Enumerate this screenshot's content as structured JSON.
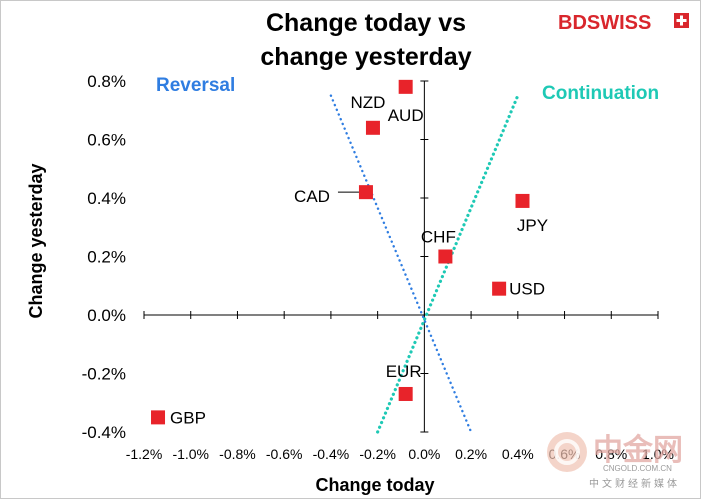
{
  "brand": {
    "part1": "BD",
    "part2": "SWISS",
    "color": "#d9262c"
  },
  "watermark": {
    "main": "中金网",
    "url": "CNGOLD.COM.CN",
    "cn": "中文财经新媒体",
    "color": "#e2a8a2"
  },
  "chart_data": {
    "type": "scatter",
    "title": [
      "Change today vs",
      "change yesterday"
    ],
    "xlabel": "Change today",
    "ylabel": "Change yesterday",
    "xlim": [
      -1.2,
      1.0
    ],
    "ylim": [
      -0.4,
      0.8
    ],
    "x_ticks": [
      -1.2,
      -1.0,
      -0.8,
      -0.6,
      -0.4,
      -0.2,
      0.0,
      0.2,
      0.4,
      0.6,
      0.8,
      1.0
    ],
    "x_tick_labels": [
      "-1.2%",
      "-1.0%",
      "-0.8%",
      "-0.6%",
      "-0.4%",
      "-0.2%",
      "0.0%",
      "0.2%",
      "0.4%",
      "0.6%",
      "0.8%",
      "1.0%"
    ],
    "y_ticks": [
      0.8,
      0.6,
      0.4,
      0.2,
      0.0,
      -0.2,
      -0.4
    ],
    "y_tick_labels": [
      "0.8%",
      "0.6%",
      "0.4%",
      "0.2%",
      "0.0%",
      "-0.2%",
      "-0.4%"
    ],
    "marker_color": "#e8232a",
    "points": [
      {
        "label": "AUD",
        "x": -0.08,
        "y": 0.78
      },
      {
        "label": "NZD",
        "x": -0.22,
        "y": 0.64
      },
      {
        "label": "CAD",
        "x": -0.25,
        "y": 0.42
      },
      {
        "label": "CHF",
        "x": 0.09,
        "y": 0.2
      },
      {
        "label": "JPY",
        "x": 0.42,
        "y": 0.39
      },
      {
        "label": "USD",
        "x": 0.32,
        "y": 0.09
      },
      {
        "label": "EUR",
        "x": -0.08,
        "y": -0.27
      },
      {
        "label": "GBP",
        "x": -1.14,
        "y": -0.35
      }
    ],
    "guides": [
      {
        "name": "Reversal",
        "color": "#2f7de1",
        "from": [
          -0.4,
          0.75
        ],
        "to": [
          0.2,
          -0.4
        ]
      },
      {
        "name": "Continuation",
        "color": "#1ec9b5",
        "from": [
          -0.2,
          -0.4
        ],
        "to": [
          0.4,
          0.75
        ]
      }
    ],
    "annotations": {
      "reversal": "Reversal",
      "continuation": "Continuation"
    }
  }
}
